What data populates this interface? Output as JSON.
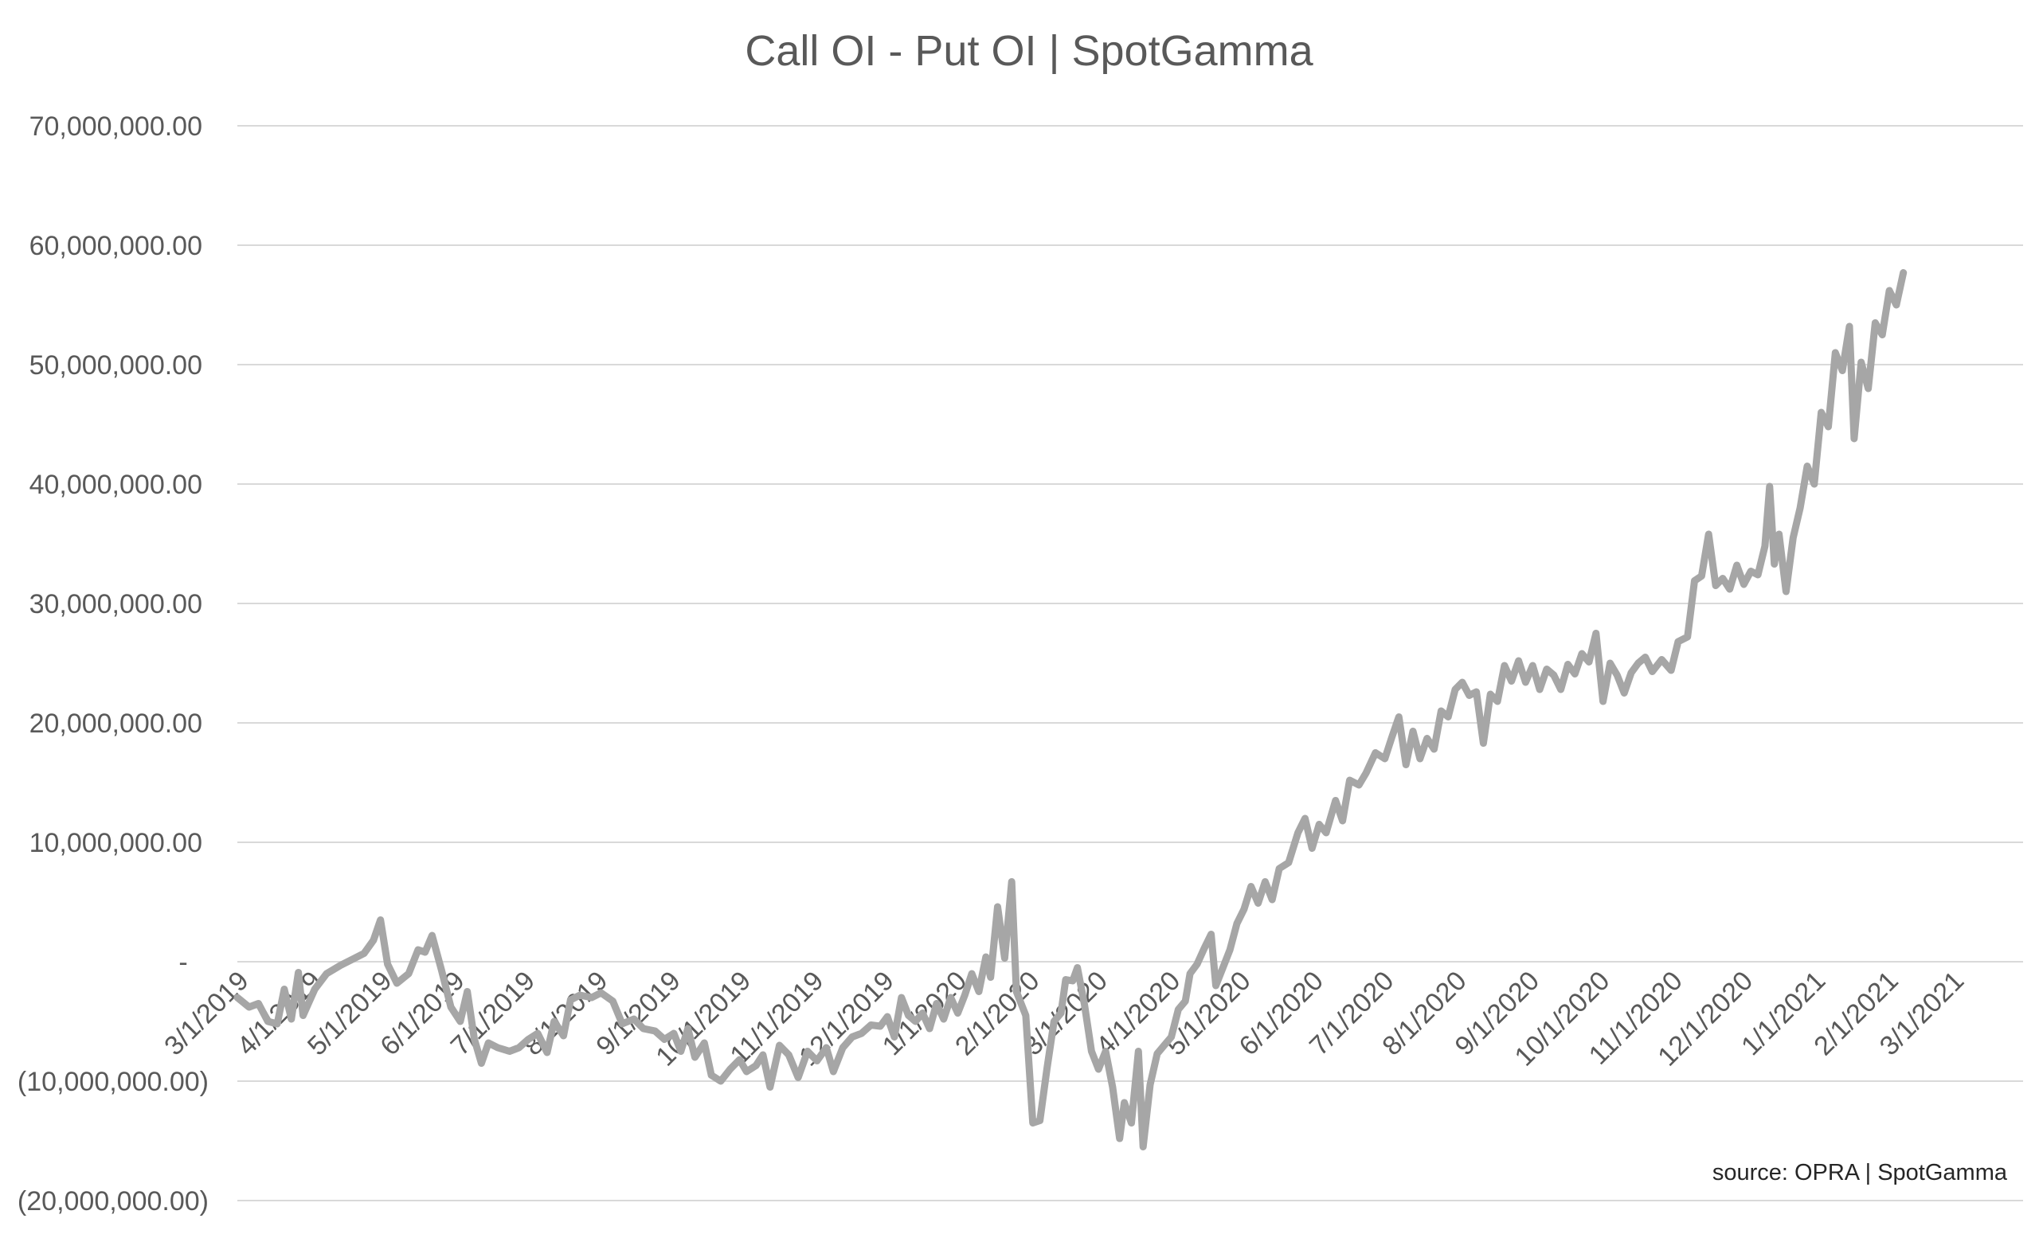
{
  "chart_data": {
    "type": "line",
    "title": "Call OI - Put OI | SpotGamma",
    "source_note": "source: OPRA | SpotGamma",
    "xlabel": "",
    "ylabel": "",
    "ylim": [
      -20000000,
      70000000
    ],
    "y_ticks": [
      {
        "value": 70000000,
        "label": "70,000,000.00"
      },
      {
        "value": 60000000,
        "label": "60,000,000.00"
      },
      {
        "value": 50000000,
        "label": "50,000,000.00"
      },
      {
        "value": 40000000,
        "label": "40,000,000.00"
      },
      {
        "value": 30000000,
        "label": "30,000,000.00"
      },
      {
        "value": 20000000,
        "label": "20,000,000.00"
      },
      {
        "value": 10000000,
        "label": "10,000,000.00"
      },
      {
        "value": 0,
        "label": "-"
      },
      {
        "value": -10000000,
        "label": "(10,000,000.00)"
      },
      {
        "value": -20000000,
        "label": "(20,000,000.00)"
      }
    ],
    "xlim": [
      "2019-03-01",
      "2021-03-31"
    ],
    "x_ticks": [
      {
        "date": "2019-03-01",
        "label": "3/1/2019"
      },
      {
        "date": "2019-04-01",
        "label": "4/1/2019"
      },
      {
        "date": "2019-05-01",
        "label": "5/1/2019"
      },
      {
        "date": "2019-06-01",
        "label": "6/1/2019"
      },
      {
        "date": "2019-07-01",
        "label": "7/1/2019"
      },
      {
        "date": "2019-08-01",
        "label": "8/1/2019"
      },
      {
        "date": "2019-09-01",
        "label": "9/1/2019"
      },
      {
        "date": "2019-10-01",
        "label": "10/1/2019"
      },
      {
        "date": "2019-11-01",
        "label": "11/1/2019"
      },
      {
        "date": "2019-12-01",
        "label": "12/1/2019"
      },
      {
        "date": "2020-01-01",
        "label": "1/1/2020"
      },
      {
        "date": "2020-02-01",
        "label": "2/1/2020"
      },
      {
        "date": "2020-03-01",
        "label": "3/1/2020"
      },
      {
        "date": "2020-04-01",
        "label": "4/1/2020"
      },
      {
        "date": "2020-05-01",
        "label": "5/1/2020"
      },
      {
        "date": "2020-06-01",
        "label": "6/1/2020"
      },
      {
        "date": "2020-07-01",
        "label": "7/1/2020"
      },
      {
        "date": "2020-08-01",
        "label": "8/1/2020"
      },
      {
        "date": "2020-09-01",
        "label": "9/1/2020"
      },
      {
        "date": "2020-10-01",
        "label": "10/1/2020"
      },
      {
        "date": "2020-11-01",
        "label": "11/1/2020"
      },
      {
        "date": "2020-12-01",
        "label": "12/1/2020"
      },
      {
        "date": "2021-01-01",
        "label": "1/1/2021"
      },
      {
        "date": "2021-02-01",
        "label": "2/1/2021"
      },
      {
        "date": "2021-03-01",
        "label": "3/1/2021"
      }
    ],
    "grid": true,
    "legend": "none",
    "series": [
      {
        "color": "#a6a6a6",
        "points": [
          [
            "2019-03-01",
            -3000000
          ],
          [
            "2019-03-06",
            -3800000
          ],
          [
            "2019-03-10",
            -3500000
          ],
          [
            "2019-03-14",
            -5000000
          ],
          [
            "2019-03-18",
            -5200000
          ],
          [
            "2019-03-21",
            -2300000
          ],
          [
            "2019-03-24",
            -4800000
          ],
          [
            "2019-03-27",
            -900000
          ],
          [
            "2019-03-29",
            -4500000
          ],
          [
            "2019-04-03",
            -2300000
          ],
          [
            "2019-04-08",
            -1000000
          ],
          [
            "2019-04-14",
            -300000
          ],
          [
            "2019-04-19",
            200000
          ],
          [
            "2019-04-24",
            700000
          ],
          [
            "2019-04-28",
            1800000
          ],
          [
            "2019-05-01",
            3500000
          ],
          [
            "2019-05-04",
            -200000
          ],
          [
            "2019-05-08",
            -1800000
          ],
          [
            "2019-05-13",
            -1000000
          ],
          [
            "2019-05-17",
            1000000
          ],
          [
            "2019-05-20",
            800000
          ],
          [
            "2019-05-23",
            2200000
          ],
          [
            "2019-05-27",
            -700000
          ],
          [
            "2019-05-31",
            -3800000
          ],
          [
            "2019-06-04",
            -5000000
          ],
          [
            "2019-06-07",
            -2500000
          ],
          [
            "2019-06-10",
            -6500000
          ],
          [
            "2019-06-13",
            -8500000
          ],
          [
            "2019-06-16",
            -6800000
          ],
          [
            "2019-06-20",
            -7200000
          ],
          [
            "2019-06-25",
            -7500000
          ],
          [
            "2019-06-29",
            -7200000
          ],
          [
            "2019-07-03",
            -6500000
          ],
          [
            "2019-07-07",
            -6000000
          ],
          [
            "2019-07-11",
            -7600000
          ],
          [
            "2019-07-14",
            -5000000
          ],
          [
            "2019-07-18",
            -6200000
          ],
          [
            "2019-07-21",
            -3200000
          ],
          [
            "2019-07-25",
            -2800000
          ],
          [
            "2019-07-30",
            -3000000
          ],
          [
            "2019-08-03",
            -2600000
          ],
          [
            "2019-08-08",
            -3300000
          ],
          [
            "2019-08-12",
            -5200000
          ],
          [
            "2019-08-17",
            -4800000
          ],
          [
            "2019-08-21",
            -5600000
          ],
          [
            "2019-08-26",
            -5800000
          ],
          [
            "2019-08-30",
            -6500000
          ],
          [
            "2019-09-03",
            -6000000
          ],
          [
            "2019-09-06",
            -7500000
          ],
          [
            "2019-09-09",
            -5600000
          ],
          [
            "2019-09-12",
            -8000000
          ],
          [
            "2019-09-16",
            -6800000
          ],
          [
            "2019-09-19",
            -9500000
          ],
          [
            "2019-09-23",
            -10000000
          ],
          [
            "2019-09-27",
            -9000000
          ],
          [
            "2019-10-01",
            -8200000
          ],
          [
            "2019-10-04",
            -9200000
          ],
          [
            "2019-10-08",
            -8700000
          ],
          [
            "2019-10-11",
            -7800000
          ],
          [
            "2019-10-14",
            -10500000
          ],
          [
            "2019-10-18",
            -7000000
          ],
          [
            "2019-10-22",
            -7800000
          ],
          [
            "2019-10-26",
            -9700000
          ],
          [
            "2019-10-30",
            -7500000
          ],
          [
            "2019-11-03",
            -8300000
          ],
          [
            "2019-11-07",
            -7200000
          ],
          [
            "2019-11-10",
            -9200000
          ],
          [
            "2019-11-14",
            -7200000
          ],
          [
            "2019-11-18",
            -6300000
          ],
          [
            "2019-11-22",
            -6000000
          ],
          [
            "2019-11-26",
            -5300000
          ],
          [
            "2019-11-30",
            -5400000
          ],
          [
            "2019-12-03",
            -4600000
          ],
          [
            "2019-12-06",
            -6300000
          ],
          [
            "2019-12-09",
            -3000000
          ],
          [
            "2019-12-12",
            -4500000
          ],
          [
            "2019-12-15",
            -5000000
          ],
          [
            "2019-12-18",
            -4300000
          ],
          [
            "2019-12-21",
            -5600000
          ],
          [
            "2019-12-24",
            -3500000
          ],
          [
            "2019-12-27",
            -4800000
          ],
          [
            "2019-12-30",
            -3000000
          ],
          [
            "2020-01-02",
            -4300000
          ],
          [
            "2020-01-05",
            -2800000
          ],
          [
            "2020-01-08",
            -1000000
          ],
          [
            "2020-01-11",
            -2500000
          ],
          [
            "2020-01-14",
            400000
          ],
          [
            "2020-01-16",
            -1300000
          ],
          [
            "2020-01-19",
            4600000
          ],
          [
            "2020-01-22",
            300000
          ],
          [
            "2020-01-25",
            6700000
          ],
          [
            "2020-01-27",
            -2500000
          ],
          [
            "2020-01-31",
            -4500000
          ],
          [
            "2020-02-03",
            -13500000
          ],
          [
            "2020-02-06",
            -13300000
          ],
          [
            "2020-02-09",
            -9000000
          ],
          [
            "2020-02-12",
            -5000000
          ],
          [
            "2020-02-15",
            -4300000
          ],
          [
            "2020-02-17",
            -1500000
          ],
          [
            "2020-02-20",
            -1600000
          ],
          [
            "2020-02-22",
            -500000
          ],
          [
            "2020-02-25",
            -3600000
          ],
          [
            "2020-02-28",
            -7500000
          ],
          [
            "2020-03-02",
            -9000000
          ],
          [
            "2020-03-05",
            -7500000
          ],
          [
            "2020-03-08",
            -10500000
          ],
          [
            "2020-03-11",
            -14800000
          ],
          [
            "2020-03-13",
            -11800000
          ],
          [
            "2020-03-16",
            -13500000
          ],
          [
            "2020-03-19",
            -7500000
          ],
          [
            "2020-03-21",
            -15500000
          ],
          [
            "2020-03-24",
            -10300000
          ],
          [
            "2020-03-27",
            -7700000
          ],
          [
            "2020-03-30",
            -7000000
          ],
          [
            "2020-04-02",
            -6300000
          ],
          [
            "2020-04-05",
            -4000000
          ],
          [
            "2020-04-08",
            -3300000
          ],
          [
            "2020-04-10",
            -1000000
          ],
          [
            "2020-04-13",
            -200000
          ],
          [
            "2020-04-16",
            1100000
          ],
          [
            "2020-04-19",
            2300000
          ],
          [
            "2020-04-21",
            -2000000
          ],
          [
            "2020-04-24",
            -500000
          ],
          [
            "2020-04-27",
            1000000
          ],
          [
            "2020-04-30",
            3200000
          ],
          [
            "2020-05-03",
            4400000
          ],
          [
            "2020-05-06",
            6300000
          ],
          [
            "2020-05-09",
            4900000
          ],
          [
            "2020-05-12",
            6700000
          ],
          [
            "2020-05-15",
            5200000
          ],
          [
            "2020-05-18",
            7800000
          ],
          [
            "2020-05-22",
            8300000
          ],
          [
            "2020-05-26",
            10800000
          ],
          [
            "2020-05-29",
            12000000
          ],
          [
            "2020-06-01",
            9500000
          ],
          [
            "2020-06-04",
            11500000
          ],
          [
            "2020-06-07",
            10800000
          ],
          [
            "2020-06-11",
            13500000
          ],
          [
            "2020-06-14",
            11800000
          ],
          [
            "2020-06-17",
            15200000
          ],
          [
            "2020-06-21",
            14800000
          ],
          [
            "2020-06-24",
            15800000
          ],
          [
            "2020-06-28",
            17500000
          ],
          [
            "2020-07-02",
            17000000
          ],
          [
            "2020-07-05",
            18800000
          ],
          [
            "2020-07-08",
            20500000
          ],
          [
            "2020-07-11",
            16500000
          ],
          [
            "2020-07-14",
            19300000
          ],
          [
            "2020-07-17",
            17000000
          ],
          [
            "2020-07-20",
            18700000
          ],
          [
            "2020-07-23",
            17800000
          ],
          [
            "2020-07-26",
            21000000
          ],
          [
            "2020-07-29",
            20500000
          ],
          [
            "2020-08-01",
            22800000
          ],
          [
            "2020-08-04",
            23400000
          ],
          [
            "2020-08-07",
            22300000
          ],
          [
            "2020-08-10",
            22600000
          ],
          [
            "2020-08-13",
            18300000
          ],
          [
            "2020-08-16",
            22400000
          ],
          [
            "2020-08-19",
            21800000
          ],
          [
            "2020-08-22",
            24800000
          ],
          [
            "2020-08-25",
            23500000
          ],
          [
            "2020-08-28",
            25200000
          ],
          [
            "2020-08-31",
            23400000
          ],
          [
            "2020-09-03",
            24800000
          ],
          [
            "2020-09-06",
            22800000
          ],
          [
            "2020-09-09",
            24500000
          ],
          [
            "2020-09-12",
            24000000
          ],
          [
            "2020-09-15",
            22800000
          ],
          [
            "2020-09-18",
            24900000
          ],
          [
            "2020-09-21",
            24100000
          ],
          [
            "2020-09-24",
            25800000
          ],
          [
            "2020-09-27",
            25100000
          ],
          [
            "2020-09-30",
            27500000
          ],
          [
            "2020-10-03",
            21800000
          ],
          [
            "2020-10-06",
            25000000
          ],
          [
            "2020-10-09",
            24000000
          ],
          [
            "2020-10-12",
            22500000
          ],
          [
            "2020-10-15",
            24200000
          ],
          [
            "2020-10-18",
            25000000
          ],
          [
            "2020-10-21",
            25500000
          ],
          [
            "2020-10-24",
            24300000
          ],
          [
            "2020-10-28",
            25300000
          ],
          [
            "2020-11-01",
            24400000
          ],
          [
            "2020-11-04",
            26800000
          ],
          [
            "2020-11-08",
            27200000
          ],
          [
            "2020-11-11",
            31900000
          ],
          [
            "2020-11-14",
            32300000
          ],
          [
            "2020-11-17",
            35800000
          ],
          [
            "2020-11-20",
            31500000
          ],
          [
            "2020-11-23",
            32100000
          ],
          [
            "2020-11-26",
            31200000
          ],
          [
            "2020-11-29",
            33200000
          ],
          [
            "2020-12-02",
            31600000
          ],
          [
            "2020-12-05",
            32700000
          ],
          [
            "2020-12-08",
            32400000
          ],
          [
            "2020-12-11",
            34800000
          ],
          [
            "2020-12-13",
            39800000
          ],
          [
            "2020-12-15",
            33300000
          ],
          [
            "2020-12-17",
            35800000
          ],
          [
            "2020-12-20",
            31000000
          ],
          [
            "2020-12-23",
            35500000
          ],
          [
            "2020-12-26",
            38000000
          ],
          [
            "2020-12-29",
            41500000
          ],
          [
            "2021-01-01",
            40000000
          ],
          [
            "2021-01-04",
            46000000
          ],
          [
            "2021-01-07",
            44800000
          ],
          [
            "2021-01-10",
            51000000
          ],
          [
            "2021-01-13",
            49500000
          ],
          [
            "2021-01-16",
            53200000
          ],
          [
            "2021-01-18",
            43800000
          ],
          [
            "2021-01-21",
            50200000
          ],
          [
            "2021-01-24",
            48000000
          ],
          [
            "2021-01-27",
            53500000
          ],
          [
            "2021-01-30",
            52500000
          ],
          [
            "2021-02-02",
            56200000
          ],
          [
            "2021-02-05",
            55000000
          ],
          [
            "2021-02-08",
            57700000
          ]
        ]
      }
    ]
  }
}
